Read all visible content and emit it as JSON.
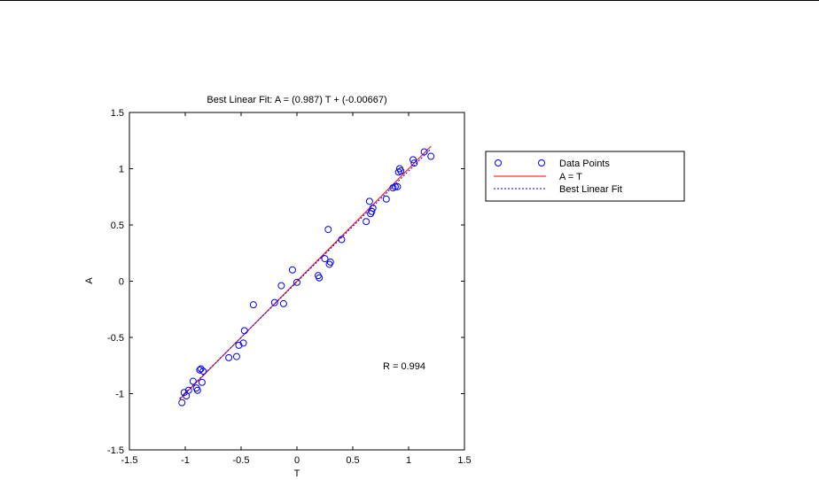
{
  "chart_data": {
    "type": "scatter",
    "title": "Best Linear Fit:  A = (0.987) T + (-0.00667)",
    "xlabel": "T",
    "ylabel": "A",
    "xlim": [
      -1.5,
      1.5
    ],
    "ylim": [
      -1.5,
      1.5
    ],
    "xticks": [
      -1.5,
      -1,
      -0.5,
      0,
      0.5,
      1,
      1.5
    ],
    "yticks": [
      -1.5,
      -1,
      -0.5,
      0,
      0.5,
      1,
      1.5
    ],
    "xtick_labels": [
      "-1.5",
      "-1",
      "-0.5",
      "0",
      "0.5",
      "1",
      "1.5"
    ],
    "ytick_labels": [
      "-1.5",
      "-1",
      "-0.5",
      "0",
      "0.5",
      "1",
      "1.5"
    ],
    "grid": false,
    "annotation": "R = 0.994",
    "legend": {
      "placement": "outside-right-top",
      "entries": [
        "Data Points",
        "A = T",
        "Best Linear Fit"
      ]
    },
    "colors": {
      "points": "#0000ff",
      "identity": "#ff0000",
      "fit": "#0000ff"
    },
    "identity_line": {
      "x": [
        -1.05,
        1.2
      ],
      "y": [
        -1.05,
        1.2
      ]
    },
    "fit_line": {
      "slope": 0.987,
      "intercept": -0.00667,
      "x": [
        -1.05,
        1.2
      ]
    },
    "points": {
      "x": [
        -1.03,
        -1.01,
        -0.99,
        -0.97,
        -0.93,
        -0.9,
        -0.89,
        -0.87,
        -0.85,
        -0.86,
        -0.84,
        -0.61,
        -0.54,
        -0.52,
        -0.48,
        -0.47,
        -0.39,
        -0.2,
        -0.14,
        -0.12,
        -0.04,
        0.0,
        0.19,
        0.2,
        0.25,
        0.28,
        0.3,
        0.29,
        0.4,
        0.62,
        0.65,
        0.66,
        0.67,
        0.68,
        0.8,
        0.86,
        0.88,
        0.9,
        0.91,
        0.92,
        0.93,
        1.04,
        1.05,
        1.14,
        1.2
      ],
      "y": [
        -1.08,
        -0.99,
        -1.02,
        -0.97,
        -0.89,
        -0.95,
        -0.97,
        -0.79,
        -0.9,
        -0.78,
        -0.8,
        -0.68,
        -0.67,
        -0.57,
        -0.55,
        -0.44,
        -0.21,
        -0.19,
        -0.04,
        -0.2,
        0.1,
        -0.01,
        0.05,
        0.03,
        0.2,
        0.46,
        0.17,
        0.15,
        0.37,
        0.53,
        0.71,
        0.6,
        0.62,
        0.65,
        0.73,
        0.83,
        0.84,
        0.84,
        0.97,
        1.0,
        0.98,
        1.08,
        1.05,
        1.15,
        1.11
      ]
    }
  }
}
